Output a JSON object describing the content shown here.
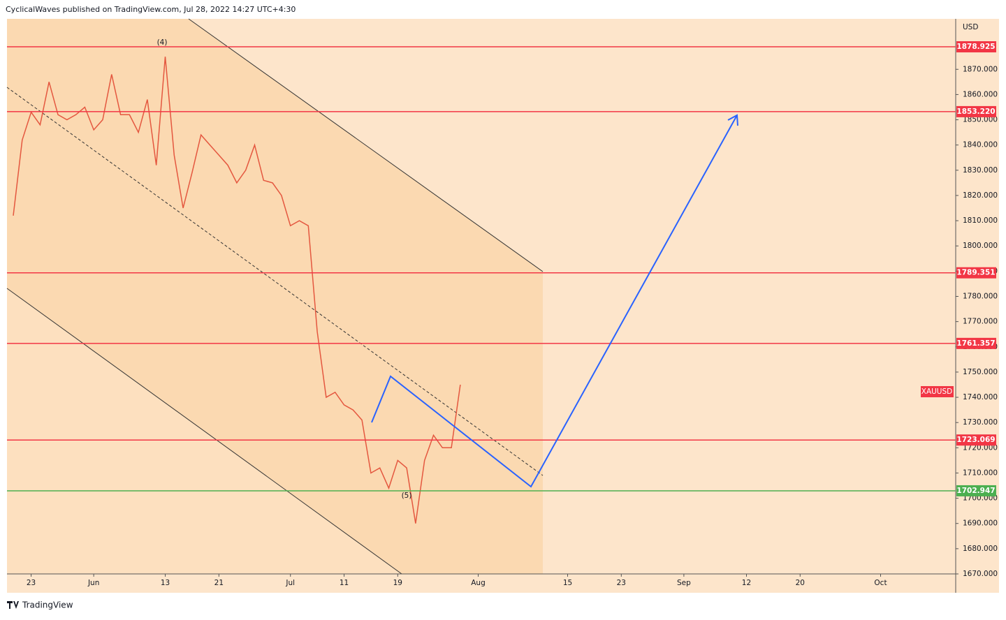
{
  "header": "CyclicalWaves published on TradingView.com, Jul 28, 2022 14:27 UTC+4:30",
  "footer": "TradingView",
  "chart_data": {
    "type": "line",
    "currency": "USD",
    "symbol": "XAUUSD",
    "annotations": [
      "(4)",
      "(5)"
    ],
    "series": [
      {
        "color": "#e4573f",
        "x": [
          -2,
          -1,
          0,
          1,
          2,
          3,
          4,
          5,
          6,
          7,
          8,
          9,
          10,
          11,
          12,
          13,
          14,
          15,
          16,
          17,
          18,
          19,
          20,
          21,
          22,
          23,
          24,
          25,
          26,
          27,
          28,
          29,
          30,
          31,
          32,
          33,
          34,
          35,
          36,
          37,
          38,
          39,
          40,
          41,
          42,
          43,
          44,
          45,
          46,
          47,
          48
        ],
        "values": [
          1812,
          1842,
          1853,
          1848,
          1865,
          1852,
          1850,
          1852,
          1855,
          1846,
          1850,
          1868,
          1852,
          1852,
          1845,
          1858,
          1832,
          1875,
          1836,
          1815,
          1829,
          1844,
          1840,
          1836,
          1832,
          1825,
          1830,
          1840,
          1826,
          1825,
          1820,
          1808,
          1810,
          1808,
          1766,
          1740,
          1742,
          1737,
          1735,
          1731,
          1710,
          1712,
          1704,
          1715,
          1712,
          1690,
          1715,
          1725,
          1720,
          1720,
          1745
        ]
      }
    ],
    "xlim": [
      -2.7,
      103.4
    ],
    "xticks": [
      {
        "value": 0,
        "label": "23"
      },
      {
        "value": 7,
        "label": "Jun"
      },
      {
        "value": 15,
        "label": "13"
      },
      {
        "value": 21,
        "label": "21"
      },
      {
        "value": 29,
        "label": "Jul"
      },
      {
        "value": 35,
        "label": "11"
      },
      {
        "value": 41,
        "label": "19"
      },
      {
        "value": 50,
        "label": "Aug"
      },
      {
        "value": 60,
        "label": "15"
      },
      {
        "value": 66,
        "label": "23"
      },
      {
        "value": 73,
        "label": "Sep"
      },
      {
        "value": 80,
        "label": "12"
      },
      {
        "value": 86,
        "label": "20"
      },
      {
        "value": 95,
        "label": "Oct"
      }
    ],
    "ylim": [
      1670,
      1890
    ],
    "yticks": [
      {
        "value": 1670,
        "label": "1670.000"
      },
      {
        "value": 1680,
        "label": "1680.000"
      },
      {
        "value": 1690,
        "label": "1690.000"
      },
      {
        "value": 1700,
        "label": "1700.000"
      },
      {
        "value": 1710,
        "label": "1710.000"
      },
      {
        "value": 1720,
        "label": "1720.000"
      },
      {
        "value": 1730,
        "label": "1730.000"
      },
      {
        "value": 1740,
        "label": "1740.000"
      },
      {
        "value": 1750,
        "label": "1750.000"
      },
      {
        "value": 1760,
        "label": "1760.000"
      },
      {
        "value": 1770,
        "label": "1770.000"
      },
      {
        "value": 1780,
        "label": "1780.000"
      },
      {
        "value": 1790,
        "label": "1790.000"
      },
      {
        "value": 1800,
        "label": "1800.000"
      },
      {
        "value": 1810,
        "label": "1810.000"
      },
      {
        "value": 1820,
        "label": "1820.000"
      },
      {
        "value": 1830,
        "label": "1830.000"
      },
      {
        "value": 1840,
        "label": "1840.000"
      },
      {
        "value": 1850,
        "label": "1850.000"
      },
      {
        "value": 1860,
        "label": "1860.000"
      },
      {
        "value": 1870,
        "label": "1870.000"
      }
    ],
    "levels": [
      1878.925,
      {
        "value": 1853.22,
        "label": "1853.220"
      },
      1789.351,
      1761.357,
      1723.069,
      1702.947
    ],
    "level_colors": [
      "#f23645",
      "#f23645",
      "#f23645",
      "#f23645",
      "#f23645",
      "#4caf50"
    ]
  }
}
